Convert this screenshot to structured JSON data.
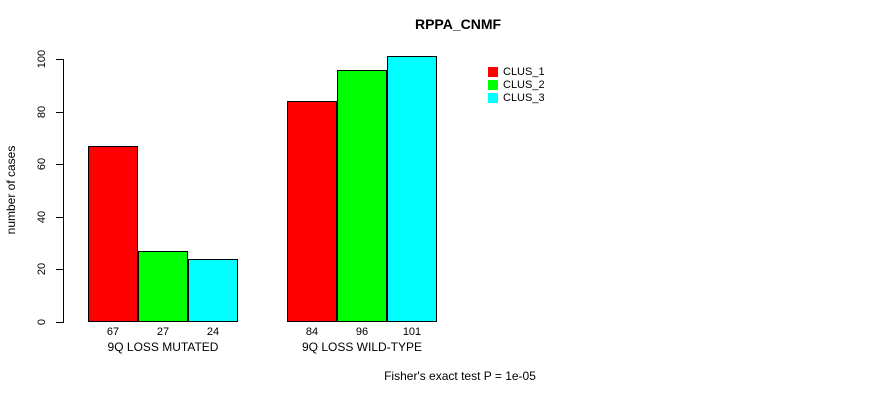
{
  "chart_data": {
    "type": "bar",
    "title": "RPPA_CNMF",
    "ylabel": "number of cases",
    "xlabel": "",
    "categories": [
      "9Q LOSS MUTATED",
      "9Q LOSS WILD-TYPE"
    ],
    "series": [
      {
        "name": "CLUS_1",
        "color": "#ff0000",
        "values": [
          67,
          84
        ]
      },
      {
        "name": "CLUS_2",
        "color": "#00ff00",
        "values": [
          27,
          96
        ]
      },
      {
        "name": "CLUS_3",
        "color": "#00ffff",
        "values": [
          24,
          101
        ]
      }
    ],
    "yticks": [
      0,
      20,
      40,
      60,
      80,
      100
    ],
    "ylim": [
      0,
      101
    ],
    "grid": false,
    "legend_position": "top-right",
    "bar_border_color": "#000000",
    "show_value_labels": true,
    "annotation": "Fisher's exact test P = 1e-05"
  }
}
